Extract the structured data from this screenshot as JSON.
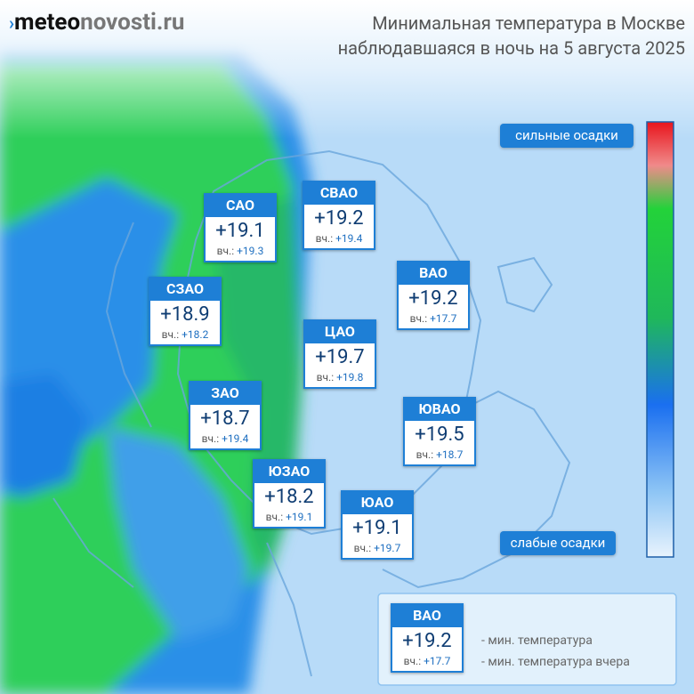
{
  "header": {
    "logo": {
      "brand": "meteo",
      "rest": "novosti.ru"
    },
    "title": [
      "Минимальная температура в Москве",
      "наблюдавшаяся в ночь на 5 августа 2025"
    ]
  },
  "scale": {
    "top_label": "сильные осадки",
    "bottom_label": "слабые осадки"
  },
  "districts": [
    {
      "name": "САО",
      "min_temp": "+19.1",
      "yesterday_label": "вч.:",
      "yesterday": "+19.3"
    },
    {
      "name": "СВАО",
      "min_temp": "+19.2",
      "yesterday_label": "вч.:",
      "yesterday": "+19.4"
    },
    {
      "name": "ВАО",
      "min_temp": "+19.2",
      "yesterday_label": "вч.:",
      "yesterday": "+17.7"
    },
    {
      "name": "СЗАО",
      "min_temp": "+18.9",
      "yesterday_label": "вч.:",
      "yesterday": "+18.2"
    },
    {
      "name": "ЦАО",
      "min_temp": "+19.7",
      "yesterday_label": "вч.:",
      "yesterday": "+19.8"
    },
    {
      "name": "ЗАО",
      "min_temp": "+18.7",
      "yesterday_label": "вч.:",
      "yesterday": "+19.4"
    },
    {
      "name": "ЮВАО",
      "min_temp": "+19.5",
      "yesterday_label": "вч.:",
      "yesterday": "+18.7"
    },
    {
      "name": "ЮЗАО",
      "min_temp": "+18.2",
      "yesterday_label": "вч.:",
      "yesterday": "+19.1"
    },
    {
      "name": "ЮАО",
      "min_temp": "+19.1",
      "yesterday_label": "вч.:",
      "yesterday": "+19.7"
    }
  ],
  "legend": {
    "name": "ВАО",
    "min_temp": "+19.2",
    "yesterday_label": "вч.:",
    "yesterday": "+17.7",
    "min_temp_note": "- мин. температура",
    "yesterday_note": "- мин. температура вчера"
  }
}
